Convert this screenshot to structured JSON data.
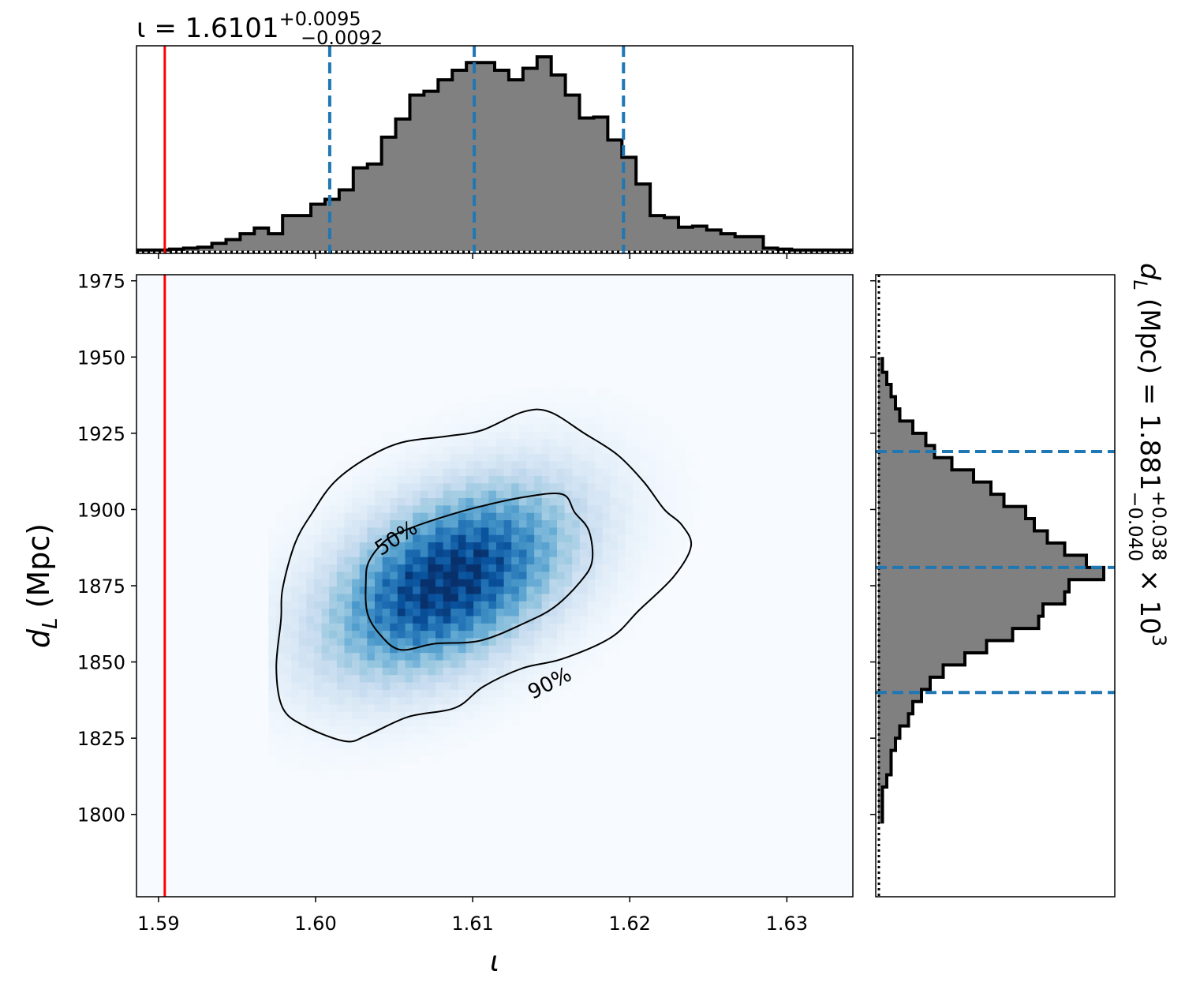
{
  "chart_data": {
    "type": "corner",
    "parameters": [
      "ι",
      "d_L (Mpc)"
    ],
    "injected_value": {
      "iota": 1.5904,
      "color": "#ff0000"
    },
    "quantile_color": "#1f77b4",
    "hist_fill_color": "#808080",
    "density_colormap": "Blues",
    "marginal_iota": {
      "title_prefix": "ι = 1.6101",
      "title_plus": "+0.0095",
      "title_minus": "−0.0092",
      "median": 1.6101,
      "quantiles": [
        1.6009,
        1.6101,
        1.6196
      ],
      "xlim": [
        1.5886,
        1.6342
      ],
      "bin_edges": [
        1.5886,
        1.5898,
        1.5907,
        1.5916,
        1.5925,
        1.5934,
        1.5943,
        1.5952,
        1.5961,
        1.597,
        1.5979,
        1.5988,
        1.5997,
        1.6006,
        1.6015,
        1.6024,
        1.6033,
        1.6042,
        1.6051,
        1.606,
        1.6069,
        1.6078,
        1.6087,
        1.6096,
        1.6105,
        1.6114,
        1.6123,
        1.6132,
        1.6141,
        1.615,
        1.6159,
        1.6168,
        1.6177,
        1.6186,
        1.6195,
        1.6204,
        1.6213,
        1.6222,
        1.6231,
        1.624,
        1.6249,
        1.6258,
        1.6267,
        1.6276,
        1.6285,
        1.6294,
        1.6303,
        1.6342
      ],
      "counts": [
        1,
        1,
        2,
        3,
        4,
        8,
        12,
        18,
        24,
        18,
        37,
        37,
        49,
        54,
        64,
        87,
        91,
        119,
        138,
        163,
        167,
        179,
        189,
        197,
        197,
        189,
        179,
        191,
        203,
        184,
        163,
        139,
        140,
        116,
        98,
        70,
        37,
        35,
        25,
        26,
        22,
        18,
        15,
        15,
        3,
        2,
        1
      ]
    },
    "marginal_dL": {
      "title_text": "d_L (Mpc) = 1.881",
      "title_plus": "+0.038",
      "title_minus": "−0.040",
      "title_suffix": "× 10",
      "title_exp": "3",
      "median": 1881,
      "quantiles": [
        1840,
        1881,
        1919
      ],
      "ylim": [
        1773,
        1977
      ],
      "bin_edges": [
        1950,
        1945,
        1941,
        1937,
        1933,
        1929,
        1925,
        1921,
        1917,
        1913,
        1909,
        1905,
        1901,
        1897,
        1893,
        1889,
        1885,
        1881,
        1877,
        1873,
        1869,
        1865,
        1861,
        1857,
        1853,
        1849,
        1845,
        1841,
        1837,
        1833,
        1829,
        1825,
        1821,
        1817,
        1813,
        1809,
        1805,
        1801,
        1797
      ],
      "counts": [
        1,
        2,
        3,
        4,
        5,
        8,
        11,
        13,
        17,
        22,
        26,
        29,
        34,
        36,
        39,
        43,
        48,
        52,
        44,
        43,
        38,
        37,
        31,
        25,
        20,
        15,
        12,
        10,
        8,
        7,
        5,
        4,
        3,
        3,
        2,
        1,
        1,
        1
      ]
    },
    "joint": {
      "xlabel": "ι",
      "ylabel": "d",
      "ylabel_sub": "L",
      "ylabel_unit": "(Mpc)",
      "xlim": [
        1.5886,
        1.6342
      ],
      "ylim": [
        1773,
        1977
      ],
      "xticks": [
        1.59,
        1.6,
        1.61,
        1.62,
        1.63
      ],
      "xtick_labels": [
        "1.59",
        "1.60",
        "1.61",
        "1.62",
        "1.63"
      ],
      "yticks": [
        1800,
        1825,
        1850,
        1875,
        1900,
        1925,
        1950,
        1975
      ],
      "ytick_labels": [
        "1800",
        "1825",
        "1850",
        "1875",
        "1900",
        "1925",
        "1950",
        "1975"
      ],
      "density_peak": {
        "iota": 1.6085,
        "dL": 1877
      },
      "density_spread": {
        "iota_sigma": 0.0052,
        "dL_sigma": 21,
        "correlation": 0.45
      },
      "contour_labels": [
        "50%",
        "90%"
      ],
      "contour_50": [
        [
          1.6034,
          1883
        ],
        [
          1.6045,
          1890
        ],
        [
          1.6061,
          1894
        ],
        [
          1.6084,
          1898
        ],
        [
          1.6105,
          1901
        ],
        [
          1.6132,
          1904
        ],
        [
          1.6157,
          1905
        ],
        [
          1.6165,
          1899
        ],
        [
          1.6174,
          1893
        ],
        [
          1.6176,
          1883
        ],
        [
          1.6168,
          1876
        ],
        [
          1.6152,
          1868
        ],
        [
          1.6134,
          1863
        ],
        [
          1.6105,
          1857
        ],
        [
          1.6076,
          1856
        ],
        [
          1.6054,
          1854
        ],
        [
          1.6041,
          1859
        ],
        [
          1.6033,
          1866
        ],
        [
          1.6032,
          1876
        ]
      ],
      "contour_90": [
        [
          1.5978,
          1864
        ],
        [
          1.5979,
          1874
        ],
        [
          1.5987,
          1889
        ],
        [
          1.5998,
          1899
        ],
        [
          1.6012,
          1909
        ],
        [
          1.6033,
          1917
        ],
        [
          1.6055,
          1922
        ],
        [
          1.6083,
          1924
        ],
        [
          1.6106,
          1926
        ],
        [
          1.6132,
          1932
        ],
        [
          1.6149,
          1932
        ],
        [
          1.6171,
          1925
        ],
        [
          1.6192,
          1918
        ],
        [
          1.6209,
          1909
        ],
        [
          1.6222,
          1900
        ],
        [
          1.6233,
          1895
        ],
        [
          1.6239,
          1888
        ],
        [
          1.6228,
          1878
        ],
        [
          1.6206,
          1867
        ],
        [
          1.6188,
          1858
        ],
        [
          1.6157,
          1851
        ],
        [
          1.6132,
          1848
        ],
        [
          1.6107,
          1842
        ],
        [
          1.6089,
          1835
        ],
        [
          1.6059,
          1832
        ],
        [
          1.6033,
          1826
        ],
        [
          1.6019,
          1824
        ],
        [
          1.5993,
          1829
        ],
        [
          1.5979,
          1835
        ],
        [
          1.5975,
          1848
        ]
      ]
    }
  }
}
